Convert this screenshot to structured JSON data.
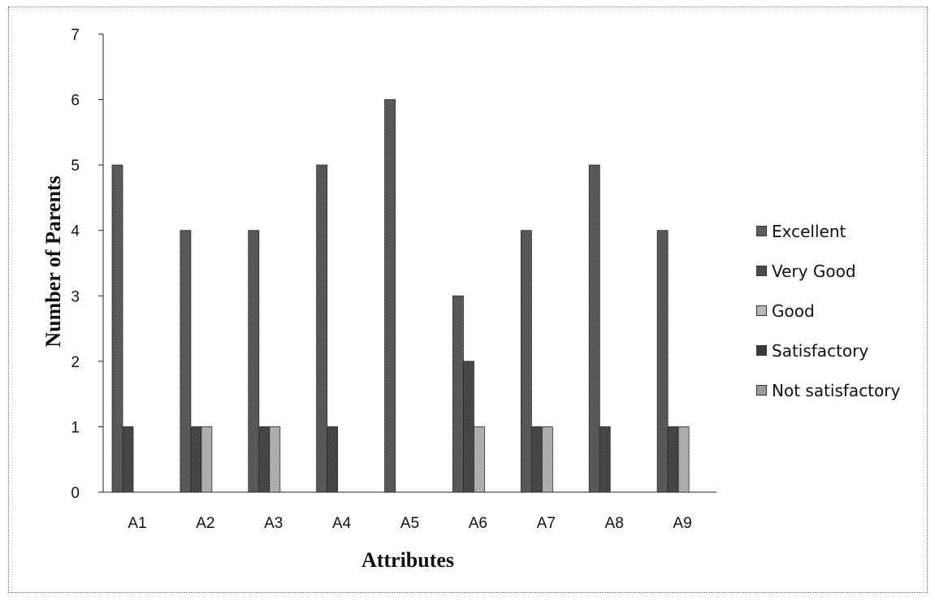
{
  "chart_data": {
    "type": "bar",
    "xlabel": "Attributes",
    "ylabel": "Number of Parents",
    "categories": [
      "A1",
      "A2",
      "A3",
      "A4",
      "A5",
      "A6",
      "A7",
      "A8",
      "A9"
    ],
    "ylim": [
      0,
      7
    ],
    "yticks": [
      "0",
      "1",
      "2",
      "3",
      "4",
      "5",
      "6",
      "7"
    ],
    "legend_position": "right",
    "series": [
      {
        "name": "Excellent",
        "color": "#5e5e5e",
        "values": [
          5,
          4,
          4,
          5,
          6,
          3,
          4,
          5,
          4
        ]
      },
      {
        "name": "Very Good",
        "color": "#4a4a4a",
        "values": [
          1,
          1,
          1,
          1,
          0,
          2,
          1,
          1,
          1
        ]
      },
      {
        "name": "Good",
        "color": "#b8b8b8",
        "values": [
          0,
          1,
          1,
          0,
          0,
          1,
          1,
          0,
          1
        ]
      },
      {
        "name": "Satisfactory",
        "color": "#3a3a3a",
        "values": [
          0,
          0,
          0,
          0,
          0,
          0,
          0,
          0,
          0
        ]
      },
      {
        "name": "Not satisfactory",
        "color": "#9a9a9a",
        "values": [
          0,
          0,
          0,
          0,
          0,
          0,
          0,
          0,
          0
        ]
      }
    ]
  }
}
